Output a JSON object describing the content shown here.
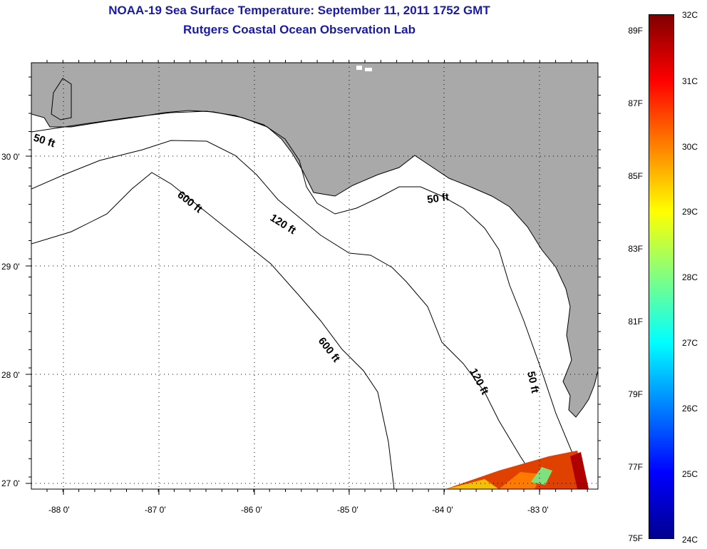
{
  "title": {
    "line1": "NOAA-19 Sea Surface Temperature:  September 11, 2011 1752 GMT",
    "line2": "Rutgers Coastal Ocean Observation Lab"
  },
  "map": {
    "lon_labels": [
      "-88 0'",
      "-87 0'",
      "-86 0'",
      "-85 0'",
      "-84 0'",
      "-83 0'"
    ],
    "lat_labels": [
      "30 0'",
      "29 0'",
      "28 0'",
      "27 0'"
    ],
    "contour_labels": [
      "50 ft",
      "600 ft",
      "120 ft",
      "50 ft",
      "600 ft",
      "120 ft",
      "50 ft"
    ],
    "colors": {
      "land": "#a9a9a9",
      "water": "#ffffff",
      "contour": "#000000"
    }
  },
  "colorbar": {
    "fahrenheit_labels": [
      "89F",
      "87F",
      "85F",
      "83F",
      "81F",
      "79F",
      "77F",
      "75F"
    ],
    "celsius_labels": [
      "32C",
      "31C",
      "30C",
      "29C",
      "28C",
      "27C",
      "26C",
      "25C",
      "24C"
    ],
    "colors": [
      "#00008f",
      "#0000ff",
      "#0080ff",
      "#00ffff",
      "#80ff80",
      "#ffff00",
      "#ff8000",
      "#ff0000",
      "#800000"
    ]
  }
}
